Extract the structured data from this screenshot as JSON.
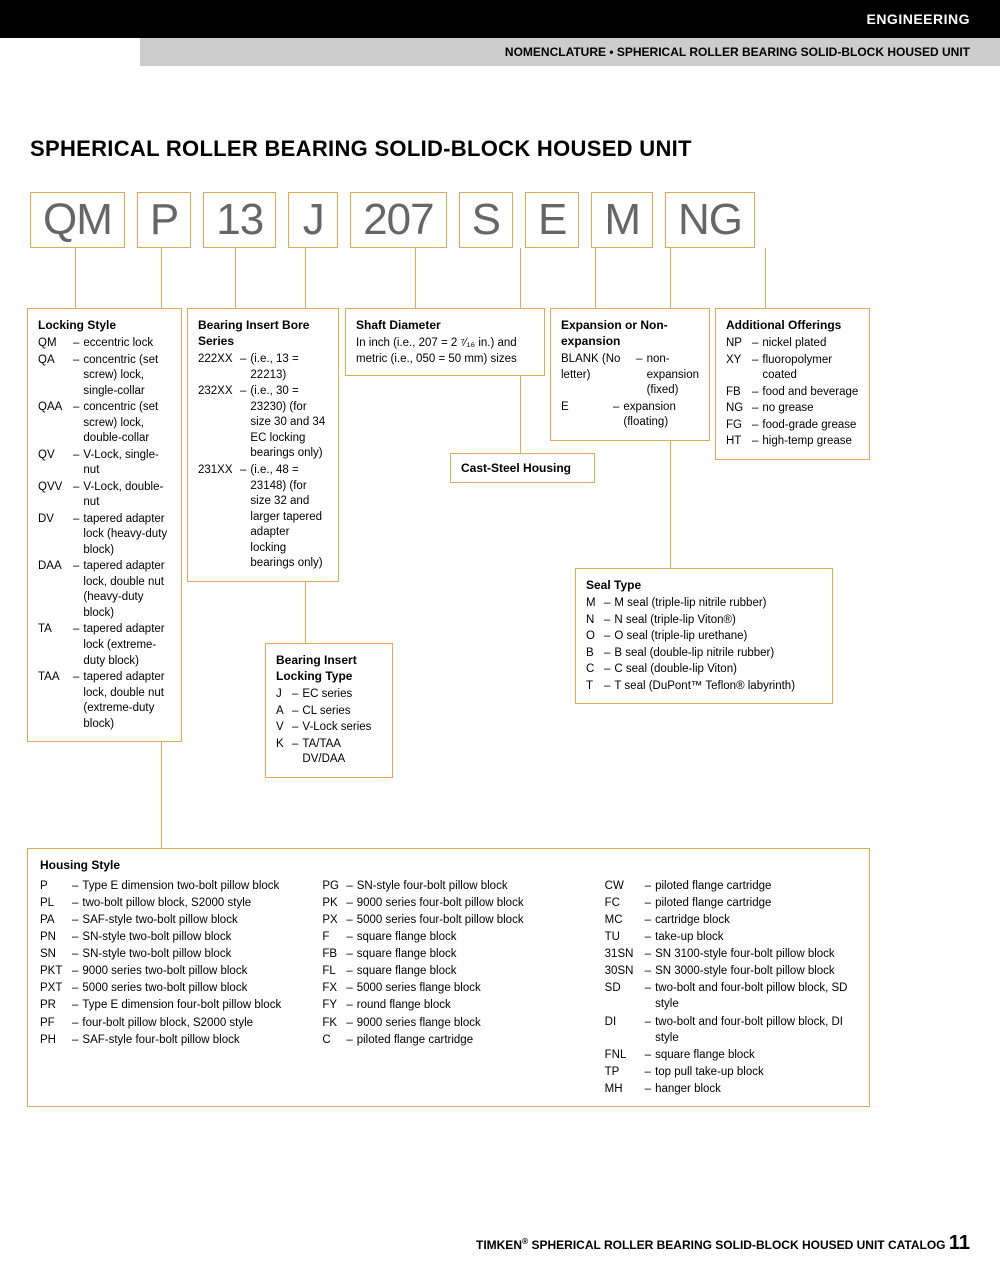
{
  "header": {
    "category": "ENGINEERING",
    "subtitle": "NOMENCLATURE • SPHERICAL ROLLER BEARING SOLID-BLOCK HOUSED UNIT"
  },
  "page_title": "SPHERICAL ROLLER BEARING SOLID-BLOCK HOUSED UNIT",
  "code_parts": [
    "QM",
    "P",
    "13",
    "J",
    "207",
    "S",
    "E",
    "M",
    "NG"
  ],
  "boxes": {
    "locking_style": {
      "title": "Locking Style",
      "items": [
        {
          "code": "QM",
          "desc": "eccentric lock"
        },
        {
          "code": "QA",
          "desc": "concentric (set screw) lock, single-collar"
        },
        {
          "code": "QAA",
          "desc": "concentric (set screw) lock, double-collar"
        },
        {
          "code": "QV",
          "desc": "V-Lock, single-nut"
        },
        {
          "code": "QVV",
          "desc": "V-Lock, double-nut"
        },
        {
          "code": "DV",
          "desc": "tapered adapter lock (heavy-duty block)"
        },
        {
          "code": "DAA",
          "desc": "tapered adapter lock, double nut (heavy-duty block)"
        },
        {
          "code": "TA",
          "desc": "tapered adapter lock (extreme-duty block)"
        },
        {
          "code": "TAA",
          "desc": "tapered adapter lock, double nut (extreme-duty block)"
        }
      ]
    },
    "bore_series": {
      "title": "Bearing Insert Bore Series",
      "items": [
        {
          "code": "222XX",
          "desc": "(i.e., 13 = 22213)"
        },
        {
          "code": "232XX",
          "desc": "(i.e., 30 = 23230) (for size 30 and 34 EC locking bearings only)"
        },
        {
          "code": "231XX",
          "desc": "(i.e., 48 = 23148) (for size 32 and larger tapered adapter locking bearings only)"
        }
      ]
    },
    "locking_type": {
      "title": "Bearing Insert Locking Type",
      "items": [
        {
          "code": "J",
          "desc": "EC series"
        },
        {
          "code": "A",
          "desc": "CL series"
        },
        {
          "code": "V",
          "desc": "V-Lock series"
        },
        {
          "code": "K",
          "desc": "TA/TAA DV/DAA"
        }
      ]
    },
    "shaft_diameter": {
      "title": "Shaft Diameter",
      "desc": "In inch (i.e., 207 = 2 ⁷⁄₁₆ in.) and metric (i.e., 050 = 50 mm) sizes"
    },
    "cast_steel": {
      "title": "Cast-Steel Housing"
    },
    "expansion": {
      "title": "Expansion or Non-expansion",
      "items": [
        {
          "code": "BLANK (No letter)",
          "desc": "non-expansion (fixed)"
        },
        {
          "code": "E",
          "desc": "expansion (floating)"
        }
      ]
    },
    "seal_type": {
      "title": "Seal Type",
      "items": [
        {
          "code": "M",
          "desc": "M seal (triple-lip nitrile rubber)"
        },
        {
          "code": "N",
          "desc": "N seal (triple-lip Viton®)"
        },
        {
          "code": "O",
          "desc": "O seal (triple-lip urethane)"
        },
        {
          "code": "B",
          "desc": "B seal (double-lip nitrile rubber)"
        },
        {
          "code": "C",
          "desc": "C seal (double-lip Viton)"
        },
        {
          "code": "T",
          "desc": "T seal (DuPont™ Teflon® labyrinth)"
        }
      ]
    },
    "additional": {
      "title": "Additional Offerings",
      "items": [
        {
          "code": "NP",
          "desc": "nickel plated"
        },
        {
          "code": "XY",
          "desc": "fluoropolymer coated"
        },
        {
          "code": "FB",
          "desc": "food and beverage"
        },
        {
          "code": "NG",
          "desc": "no grease"
        },
        {
          "code": "FG",
          "desc": "food-grade grease"
        },
        {
          "code": "HT",
          "desc": "high-temp grease"
        }
      ]
    },
    "housing_style": {
      "title": "Housing Style",
      "col1": [
        {
          "code": "P",
          "desc": "Type E dimension two-bolt pillow block"
        },
        {
          "code": "PL",
          "desc": "two-bolt pillow block, S2000 style"
        },
        {
          "code": "PA",
          "desc": "SAF-style two-bolt pillow block"
        },
        {
          "code": "PN",
          "desc": "SN-style two-bolt pillow block"
        },
        {
          "code": "SN",
          "desc": "SN-style two-bolt pillow block"
        },
        {
          "code": "PKT",
          "desc": "9000 series two-bolt pillow block"
        },
        {
          "code": "PXT",
          "desc": "5000 series two-bolt pillow block"
        },
        {
          "code": "PR",
          "desc": "Type E dimension four-bolt pillow block"
        },
        {
          "code": "PF",
          "desc": "four-bolt pillow block, S2000 style"
        },
        {
          "code": "PH",
          "desc": "SAF-style four-bolt pillow block"
        }
      ],
      "col2": [
        {
          "code": "PG",
          "desc": "SN-style four-bolt pillow block"
        },
        {
          "code": "PK",
          "desc": "9000 series four-bolt pillow block"
        },
        {
          "code": "PX",
          "desc": "5000 series four-bolt pillow block"
        },
        {
          "code": "F",
          "desc": "square flange block"
        },
        {
          "code": "FB",
          "desc": "square flange block"
        },
        {
          "code": "FL",
          "desc": "square flange block"
        },
        {
          "code": "FX",
          "desc": "5000 series flange block"
        },
        {
          "code": "FY",
          "desc": "round flange block"
        },
        {
          "code": "FK",
          "desc": "9000 series flange block"
        },
        {
          "code": "C",
          "desc": "piloted flange cartridge"
        }
      ],
      "col3": [
        {
          "code": "CW",
          "desc": "piloted flange cartridge"
        },
        {
          "code": "FC",
          "desc": "piloted flange cartridge"
        },
        {
          "code": "MC",
          "desc": "cartridge block"
        },
        {
          "code": "TU",
          "desc": "take-up block"
        },
        {
          "code": "31SN",
          "desc": "SN 3100-style four-bolt pillow block"
        },
        {
          "code": "30SN",
          "desc": "SN 3000-style four-bolt pillow block"
        },
        {
          "code": "SD",
          "desc": "two-bolt and four-bolt pillow block, SD style"
        },
        {
          "code": "DI",
          "desc": "two-bolt and four-bolt pillow block, DI style"
        },
        {
          "code": "FNL",
          "desc": "square flange block"
        },
        {
          "code": "TP",
          "desc": "top pull take-up block"
        },
        {
          "code": "MH",
          "desc": "hanger block"
        }
      ]
    }
  },
  "footer": {
    "brand": "TIMKEN",
    "text": "SPHERICAL ROLLER BEARING SOLID-BLOCK HOUSED UNIT CATALOG",
    "page": "11"
  },
  "colors": {
    "box_border": "#e6a756",
    "code_text": "#666666",
    "header_bg": "#000000",
    "subheader_bg": "#cccccc"
  }
}
